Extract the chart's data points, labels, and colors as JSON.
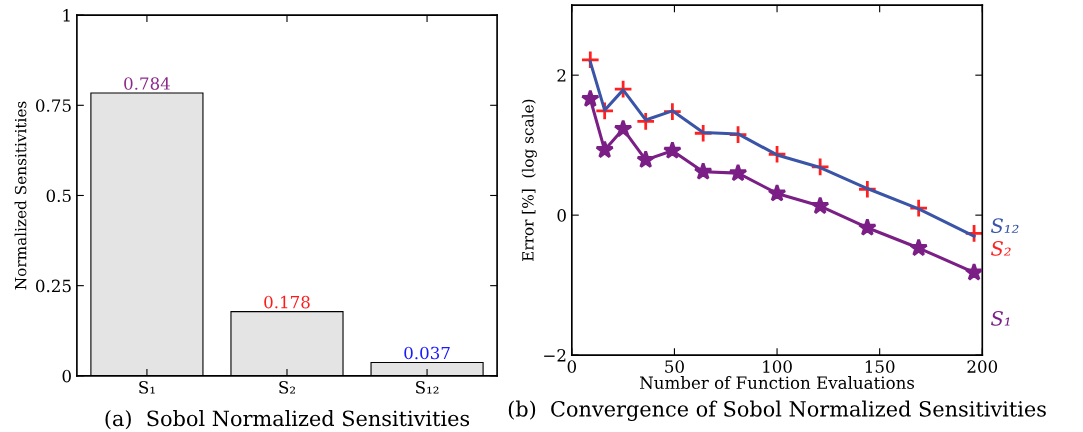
{
  "chart_data": [
    {
      "type": "bar",
      "title": "(a)  Sobol Normalized Sensitivities",
      "ylabel": "Normalized Sensitivities",
      "categories": [
        "S₁",
        "S₂",
        "S₁₂"
      ],
      "values": [
        0.784,
        0.178,
        0.037
      ],
      "color": "#e4e4e4",
      "data_labels": true,
      "ylim": [
        0,
        1
      ],
      "yticks": [
        0,
        0.25,
        0.5,
        0.75,
        1
      ],
      "grid": false,
      "legend": false
    },
    {
      "type": "line",
      "title": "(b)  Convergence of Sobol Normalized Sensitivities",
      "xlabel": "Number of Function Evaluations",
      "ylabel": "Error [%]  (log scale)",
      "x": [
        9,
        16,
        25,
        36,
        49,
        64,
        81,
        100,
        121,
        144,
        169,
        196
      ],
      "series": [
        {
          "name": "S₂",
          "type": "scatter",
          "marker": "cross",
          "color": "#ff2020",
          "values": [
            2.22,
            1.49,
            1.8,
            1.34,
            1.48,
            1.17,
            1.15,
            0.87,
            0.69,
            0.37,
            0.1,
            -0.26
          ]
        },
        {
          "name": "S₁₂",
          "type": "line",
          "marker": "none",
          "color": "#3a55a8",
          "values": [
            2.19,
            1.5,
            1.79,
            1.36,
            1.49,
            1.18,
            1.16,
            0.86,
            0.68,
            0.38,
            0.09,
            -0.3
          ]
        },
        {
          "name": "S₁",
          "type": "line",
          "marker": "star",
          "color": "#7b1f86",
          "values": [
            1.66,
            0.93,
            1.23,
            0.79,
            0.92,
            0.62,
            0.6,
            0.31,
            0.13,
            -0.18,
            -0.47,
            -0.82
          ]
        }
      ],
      "xlim": [
        0,
        200
      ],
      "xticks": [
        0,
        50,
        100,
        150,
        200
      ],
      "ylim": [
        -2,
        3
      ],
      "yticks": [
        -2,
        0,
        2
      ],
      "grid": false,
      "legend": false
    }
  ]
}
